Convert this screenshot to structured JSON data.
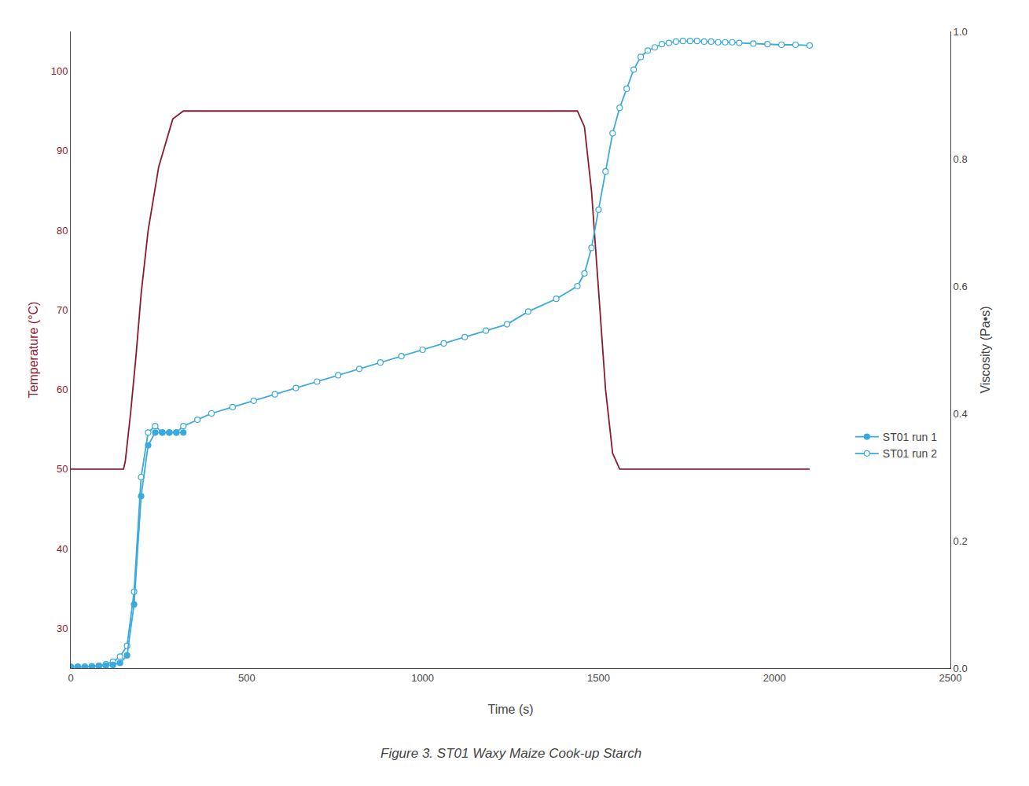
{
  "chart_data": {
    "type": "line",
    "title": "Figure 3. ST01 Waxy Maize Cook-up Starch",
    "x_label": "Time (s)",
    "y_label": "Temperature (°C)",
    "y2_label": "Viscosity (Pa•s)",
    "xlim": [
      0,
      2500
    ],
    "xticks": [
      0,
      500,
      1000,
      1500,
      2000,
      2500
    ],
    "ylim": [
      25,
      105
    ],
    "yticks": [
      30,
      40,
      50,
      60,
      70,
      80,
      90,
      100
    ],
    "y2lim": [
      0,
      1.0
    ],
    "y2ticks": [
      {
        "value": 0,
        "label": "0.0"
      },
      0.2,
      0.4,
      0.6,
      0.8,
      {
        "value": 1,
        "label": "1.0"
      }
    ],
    "grid": false,
    "legend": "right",
    "series": [
      {
        "color": "#8B1A2F",
        "x": [
          0,
          150,
          155,
          160,
          170,
          185,
          200,
          220,
          250,
          290,
          320,
          1440,
          1460,
          1480,
          1500,
          1520,
          1540,
          1560,
          2100
        ],
        "values": [
          50,
          50,
          51,
          53,
          57,
          64,
          72,
          80,
          88,
          94,
          95,
          95,
          93,
          85,
          72,
          60,
          52,
          50,
          50
        ]
      },
      {
        "name": "ST01 run 2",
        "color": "#3AAADC",
        "axis": "y2",
        "marker": "open",
        "x": [
          0,
          20,
          40,
          60,
          80,
          100,
          120,
          140,
          160,
          180,
          200,
          220,
          240,
          260,
          280,
          300,
          320,
          360,
          400,
          460,
          520,
          580,
          640,
          700,
          760,
          820,
          880,
          940,
          1000,
          1060,
          1120,
          1180,
          1240,
          1300,
          1380,
          1440,
          1460,
          1480,
          1500,
          1520,
          1540,
          1560,
          1580,
          1600,
          1620,
          1640,
          1660,
          1680,
          1700,
          1720,
          1740,
          1760,
          1780,
          1800,
          1820,
          1840,
          1860,
          1880,
          1900,
          1940,
          1980,
          2020,
          2060,
          2100
        ],
        "values": [
          0.002,
          0.002,
          0.002,
          0.003,
          0.004,
          0.006,
          0.01,
          0.018,
          0.035,
          0.12,
          0.3,
          0.37,
          0.38,
          0.37,
          0.37,
          0.37,
          0.38,
          0.39,
          0.4,
          0.41,
          0.42,
          0.43,
          0.44,
          0.45,
          0.46,
          0.47,
          0.48,
          0.49,
          0.5,
          0.51,
          0.52,
          0.53,
          0.54,
          0.56,
          0.58,
          0.6,
          0.62,
          0.66,
          0.72,
          0.78,
          0.84,
          0.88,
          0.91,
          0.94,
          0.96,
          0.97,
          0.975,
          0.98,
          0.982,
          0.984,
          0.985,
          0.985,
          0.985,
          0.984,
          0.984,
          0.983,
          0.983,
          0.983,
          0.982,
          0.981,
          0.98,
          0.979,
          0.979,
          0.978
        ]
      },
      {
        "name": "ST01 run 1",
        "color": "#3AAADC",
        "axis": "y2",
        "marker": "filled",
        "x": [
          0,
          20,
          40,
          60,
          80,
          100,
          120,
          140,
          160,
          180,
          200,
          220,
          240,
          260,
          280,
          300,
          320
        ],
        "values": [
          0.002,
          0.002,
          0.002,
          0.002,
          0.003,
          0.004,
          0.005,
          0.008,
          0.02,
          0.1,
          0.27,
          0.35,
          0.37,
          0.37,
          0.37,
          0.37,
          0.37
        ]
      }
    ]
  }
}
